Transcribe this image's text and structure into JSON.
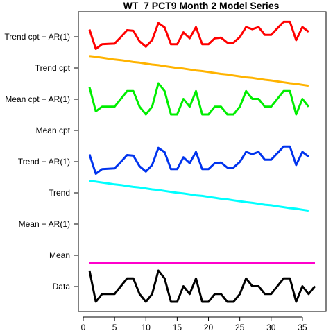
{
  "chart_data": {
    "type": "line",
    "title": "WT_7 PCT9 Month 2 Model Series",
    "xlabel": "",
    "ylabel": "",
    "xlim": [
      0,
      38
    ],
    "x_ticks": [
      0,
      5,
      10,
      15,
      20,
      25,
      30,
      35
    ],
    "grid": false,
    "legend": "none",
    "series": [
      {
        "name": "Trend cpt + AR(1)",
        "color": "#FF0000",
        "values": [
          0.72,
          0.1,
          0.25,
          0.26,
          0.27,
          0.48,
          0.7,
          0.68,
          0.34,
          0.17,
          0.38,
          0.93,
          0.79,
          0.25,
          0.25,
          0.63,
          0.44,
          0.8,
          0.25,
          0.25,
          0.44,
          0.46,
          0.3,
          0.3,
          0.48,
          0.8,
          0.73,
          0.8,
          0.55,
          0.55,
          0.76,
          0.97,
          0.97,
          0.38,
          0.8,
          0.65
        ]
      },
      {
        "name": "Trend cpt",
        "color": "#FFB300",
        "values": [
          0.87,
          0.85,
          0.82,
          0.79,
          0.76,
          0.74,
          0.71,
          0.68,
          0.66,
          0.63,
          0.6,
          0.58,
          0.55,
          0.52,
          0.49,
          0.47,
          0.44,
          0.41,
          0.39,
          0.36,
          0.33,
          0.3,
          0.28,
          0.25,
          0.22,
          0.19,
          0.17,
          0.14,
          0.11,
          0.09,
          0.06,
          0.03,
          0.0,
          -0.02,
          -0.05,
          -0.08
        ]
      },
      {
        "name": "Mean cpt + AR(1)",
        "color": "#00EE00",
        "values": [
          0.87,
          0.1,
          0.25,
          0.25,
          0.25,
          0.5,
          0.75,
          0.75,
          0.25,
          0.0,
          0.25,
          1.0,
          0.75,
          0.0,
          0.0,
          0.5,
          0.25,
          0.75,
          0.0,
          0.0,
          0.25,
          0.25,
          0.0,
          0.0,
          0.25,
          0.75,
          0.5,
          0.5,
          0.25,
          0.25,
          0.5,
          0.75,
          0.75,
          0.0,
          0.5,
          0.25
        ]
      },
      {
        "name": "Mean cpt",
        "color": "#0000FF",
        "values": []
      },
      {
        "name": "Trend + AR(1)",
        "color": "#0033EE",
        "values": [
          0.72,
          0.1,
          0.25,
          0.26,
          0.27,
          0.48,
          0.7,
          0.68,
          0.34,
          0.17,
          0.38,
          0.93,
          0.79,
          0.25,
          0.25,
          0.63,
          0.44,
          0.8,
          0.25,
          0.25,
          0.44,
          0.46,
          0.3,
          0.3,
          0.48,
          0.8,
          0.73,
          0.8,
          0.55,
          0.55,
          0.76,
          0.97,
          0.97,
          0.38,
          0.8,
          0.65
        ]
      },
      {
        "name": "Trend",
        "color": "#00FFFF",
        "values": [
          0.87,
          0.85,
          0.82,
          0.79,
          0.76,
          0.74,
          0.71,
          0.68,
          0.66,
          0.63,
          0.6,
          0.58,
          0.55,
          0.52,
          0.49,
          0.47,
          0.44,
          0.41,
          0.39,
          0.36,
          0.33,
          0.3,
          0.28,
          0.25,
          0.22,
          0.19,
          0.17,
          0.14,
          0.11,
          0.09,
          0.06,
          0.03,
          0.0,
          -0.02,
          -0.05,
          -0.08
        ]
      },
      {
        "name": "Mean + AR(1)",
        "color": "#9900CC",
        "values": []
      },
      {
        "name": "Mean",
        "color": "#FF00CC",
        "values": [
          0.25,
          0.25,
          0.25,
          0.25,
          0.25,
          0.25,
          0.25,
          0.25,
          0.25,
          0.25,
          0.25,
          0.25,
          0.25,
          0.25,
          0.25,
          0.25,
          0.25,
          0.25,
          0.25,
          0.25,
          0.25,
          0.25,
          0.25,
          0.25,
          0.25,
          0.25,
          0.25,
          0.25,
          0.25,
          0.25,
          0.25,
          0.25,
          0.25,
          0.25,
          0.25,
          0.25,
          0.25
        ]
      },
      {
        "name": "Data",
        "color": "#000000",
        "values": [
          1.0,
          0.0,
          0.25,
          0.25,
          0.25,
          0.5,
          0.75,
          0.75,
          0.25,
          0.0,
          0.25,
          1.0,
          0.75,
          0.0,
          0.0,
          0.5,
          0.25,
          0.75,
          0.0,
          0.0,
          0.25,
          0.25,
          0.0,
          0.0,
          0.25,
          0.75,
          0.5,
          0.5,
          0.25,
          0.25,
          0.5,
          0.75,
          0.75,
          0.0,
          0.5,
          0.25,
          0.5
        ]
      }
    ]
  }
}
